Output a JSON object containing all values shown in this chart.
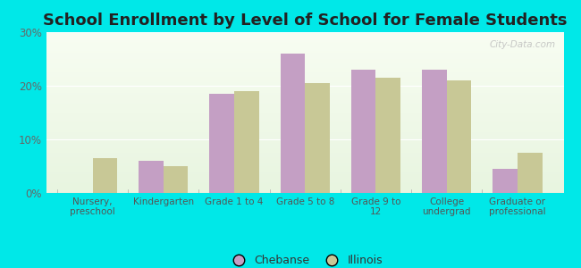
{
  "title": "School Enrollment by Level of School for Female Students",
  "categories": [
    "Nursery,\npreschool",
    "Kindergarten",
    "Grade 1 to 4",
    "Grade 5 to 8",
    "Grade 9 to\n12",
    "College\nundergrad",
    "Graduate or\nprofessional"
  ],
  "chebanse": [
    0,
    6,
    18.5,
    26,
    23,
    23,
    4.5
  ],
  "illinois": [
    6.5,
    5,
    19,
    20.5,
    21.5,
    21,
    7.5
  ],
  "chebanse_color": "#c49fc4",
  "illinois_color": "#c8c896",
  "background_outer": "#00e8e8",
  "ylim": [
    0,
    30
  ],
  "yticks": [
    0,
    10,
    20,
    30
  ],
  "ytick_labels": [
    "0%",
    "10%",
    "20%",
    "30%"
  ],
  "legend_labels": [
    "Chebanse",
    "Illinois"
  ],
  "bar_width": 0.35,
  "title_fontsize": 13,
  "watermark": "City-Data.com"
}
